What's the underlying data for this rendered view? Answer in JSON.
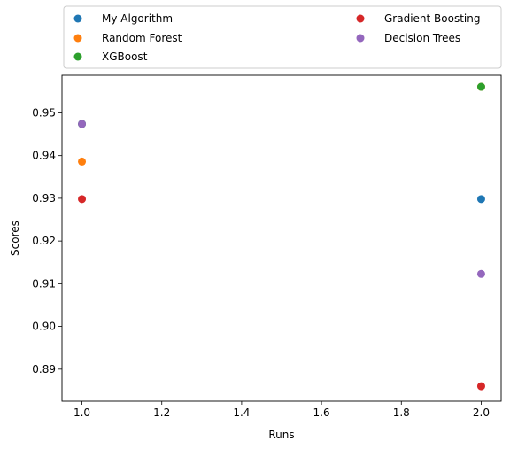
{
  "chart_data": {
    "type": "scatter",
    "title": "",
    "xlabel": "Runs",
    "ylabel": "Scores",
    "xlim": [
      0.95,
      2.05
    ],
    "ylim": [
      0.8825,
      0.9588
    ],
    "x_ticks": [
      1.0,
      1.2,
      1.4,
      1.6,
      1.8,
      2.0
    ],
    "x_tick_labels": [
      "1.0",
      "1.2",
      "1.4",
      "1.6",
      "1.8",
      "2.0"
    ],
    "y_ticks": [
      0.89,
      0.9,
      0.91,
      0.92,
      0.93,
      0.94,
      0.95
    ],
    "y_tick_labels": [
      "0.89",
      "0.90",
      "0.91",
      "0.92",
      "0.93",
      "0.94",
      "0.95"
    ],
    "grid": false,
    "legend_position": "above plot, two columns",
    "series": [
      {
        "name": "My Algorithm",
        "color": "#1f77b4",
        "x": [
          1,
          2
        ],
        "y": [
          0.9474,
          0.9298
        ]
      },
      {
        "name": "Random Forest",
        "color": "#ff7f0e",
        "x": [
          1,
          2
        ],
        "y": [
          0.9386,
          0.9561
        ]
      },
      {
        "name": "XGBoost",
        "color": "#2ca02c",
        "x": [
          1,
          2
        ],
        "y": [
          0.9474,
          0.9561
        ]
      },
      {
        "name": "Gradient Boosting",
        "color": "#d62728",
        "x": [
          1,
          2
        ],
        "y": [
          0.9298,
          0.886
        ]
      },
      {
        "name": "Decision Trees",
        "color": "#9467bd",
        "x": [
          1,
          2
        ],
        "y": [
          0.9474,
          0.9123
        ]
      }
    ]
  }
}
